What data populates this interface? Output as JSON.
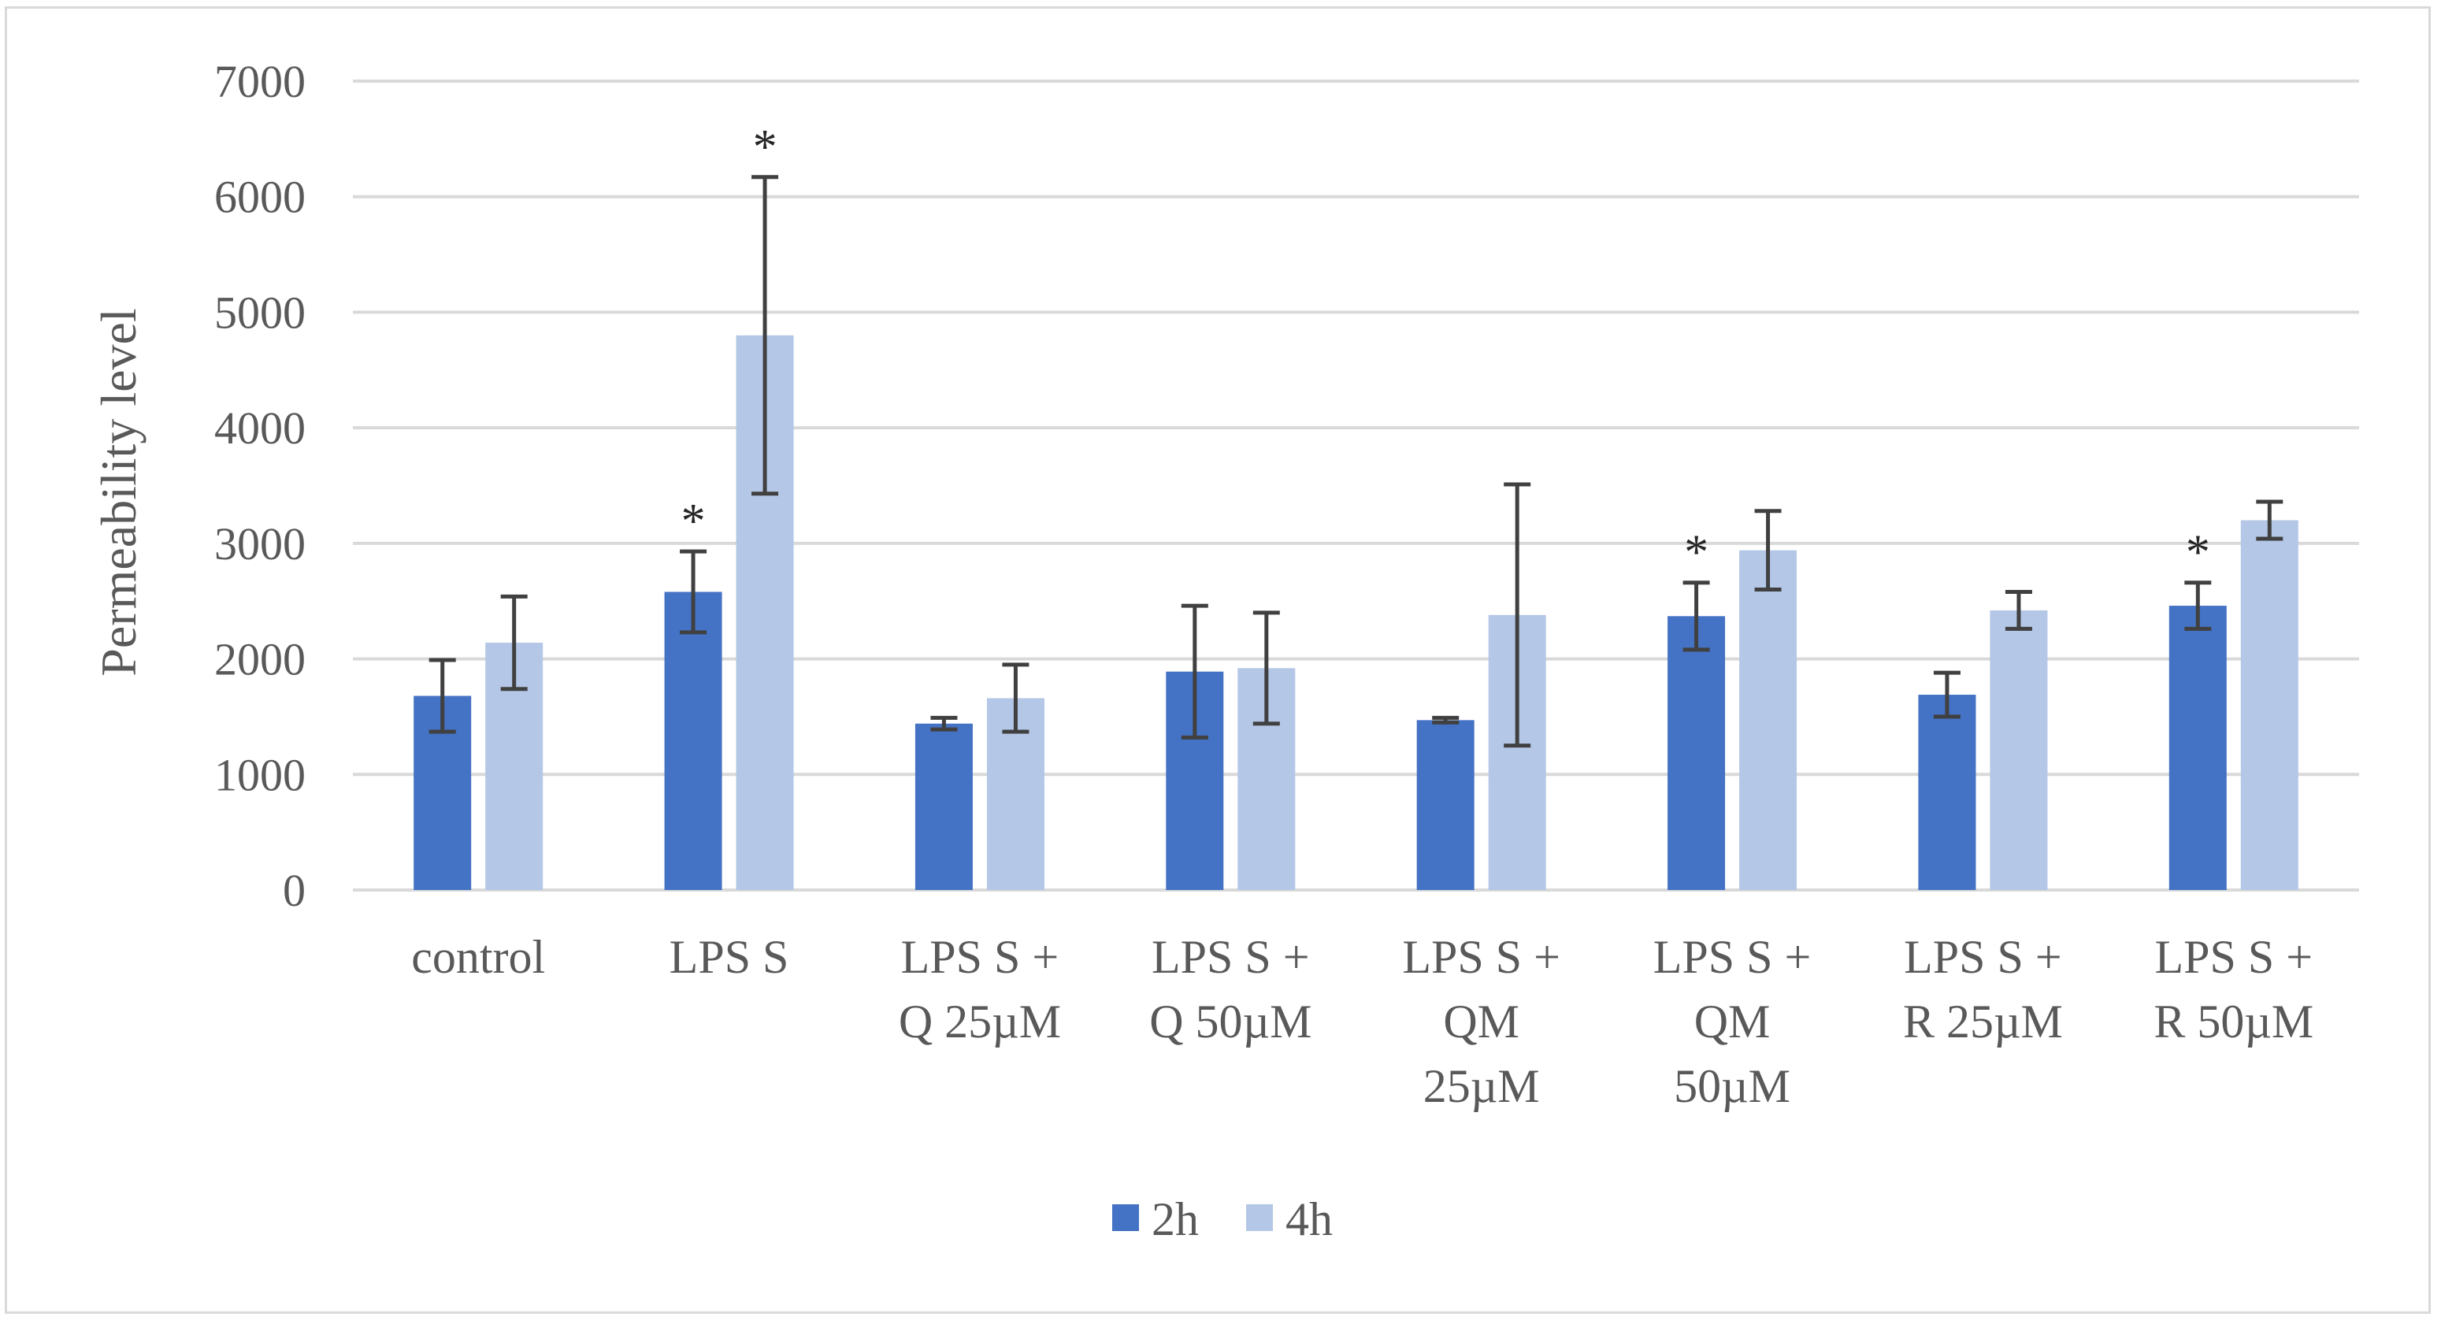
{
  "chart_data": {
    "type": "bar",
    "title": "",
    "xlabel": "",
    "ylabel": "Permeability level",
    "ylim": [
      0,
      7000
    ],
    "yticks": [
      0,
      1000,
      2000,
      3000,
      4000,
      5000,
      6000,
      7000
    ],
    "grid": true,
    "legend_position": "bottom",
    "categories": [
      [
        "control"
      ],
      [
        "LPS S"
      ],
      [
        "LPS S +",
        "Q 25µM"
      ],
      [
        "LPS S +",
        "Q 50µM"
      ],
      [
        "LPS S +",
        "QM",
        "25µM"
      ],
      [
        "LPS S +",
        "QM",
        "50µM"
      ],
      [
        "LPS S +",
        "R 25µM"
      ],
      [
        "LPS S +",
        "R 50µM"
      ]
    ],
    "series": [
      {
        "name": "2h",
        "color": "#4472c4",
        "error_color": "#404040",
        "values": [
          1680,
          2580,
          1440,
          1890,
          1470,
          2370,
          1690,
          2460
        ],
        "errors": [
          310,
          350,
          50,
          570,
          20,
          290,
          190,
          200
        ],
        "significant": [
          false,
          true,
          false,
          false,
          false,
          true,
          false,
          true
        ]
      },
      {
        "name": "4h",
        "color": "#b4c7e7",
        "error_color": "#404040",
        "values": [
          2140,
          4800,
          1660,
          1920,
          2380,
          2940,
          2420,
          3200
        ],
        "errors": [
          400,
          1370,
          290,
          480,
          1130,
          340,
          160,
          160
        ],
        "significant": [
          false,
          true,
          false,
          false,
          false,
          false,
          false,
          false
        ]
      }
    ],
    "significance_marker": "*"
  }
}
